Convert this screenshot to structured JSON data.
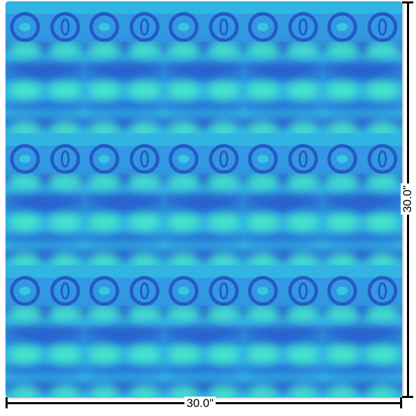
{
  "product": {
    "width_label": "30.0\"",
    "height_label": "30.0\"",
    "pattern": {
      "name": "blue-turquoise-ring-chain-noise",
      "colors": {
        "deep_blue": "#1e4fc0",
        "mid_blue": "#2a7fd8",
        "cyan": "#2fc8e0",
        "aqua": "#3fe8c8",
        "speck": "#0a1a10"
      }
    }
  }
}
